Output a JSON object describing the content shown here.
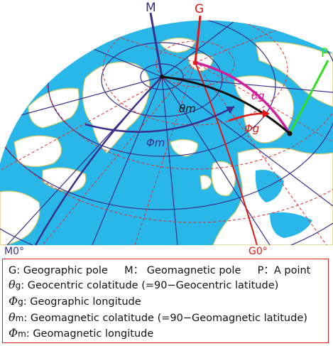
{
  "labels": {
    "M": "M",
    "G": "G",
    "P": "P",
    "M0": "M0°",
    "G0": "G0°",
    "theta_m": "θm",
    "theta_g": "θg",
    "phi_g": "Φg",
    "phi_m": "Φm"
  },
  "legend": {
    "row1": [
      {
        "sym": "G",
        "desc": ": Geographic pole"
      },
      {
        "sym": "M",
        "desc": "： Geomagnetic pole"
      },
      {
        "sym": "P",
        "desc": "：A point"
      }
    ],
    "row2": {
      "sym": "θ",
      "sub": "g",
      "desc": ": Geocentric colatitude (=90−Geocentric latitude)"
    },
    "row3": {
      "sym": "Φ",
      "sub": "g",
      "desc": ": Geographic longitude"
    },
    "row4": {
      "sym": "θ",
      "sub": "m",
      "desc": ": Geomagnetic colatitude (=90−Geomagnetic latitude)"
    },
    "row5": {
      "sym": "Φ",
      "sub": "m",
      "desc": ": Geomagnetic longitude"
    }
  },
  "colors": {
    "ocean": "#29b6e8",
    "land": "#ffffff",
    "coast": "#d4c96a",
    "grid_geomagnetic": "#3a2f8a",
    "grid_geographic": "#e03030",
    "pole_M": "#3a2f8a",
    "pole_G": "#e01818",
    "point_P": "#33dd22",
    "theta_g": "#d0209a",
    "theta_m": "#111111",
    "legend_border": "#e02020"
  }
}
